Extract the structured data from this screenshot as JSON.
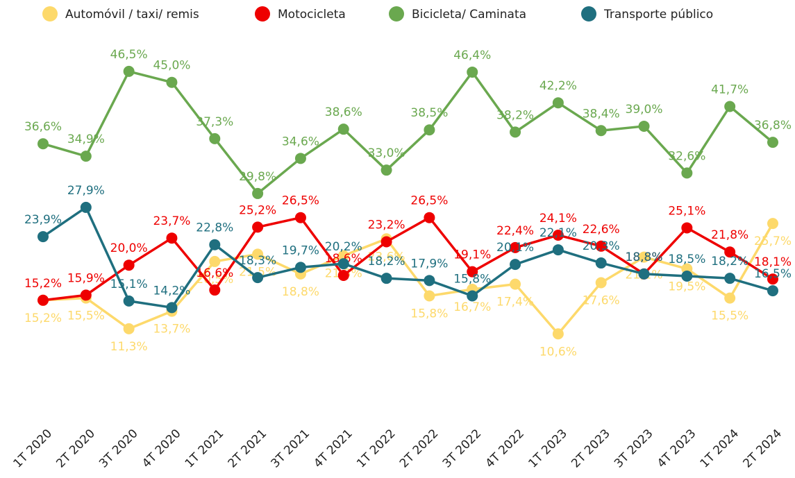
{
  "chart_data": {
    "type": "line",
    "categories": [
      "1T 2020",
      "2T 2020",
      "3T 2020",
      "4T 2020",
      "1T 2021",
      "2T 2021",
      "3T 2021",
      "4T 2021",
      "1T 2022",
      "2T 2022",
      "3T 2022",
      "4T 2022",
      "1T 2023",
      "2T 2023",
      "3T 2023",
      "4T 2023",
      "1T 2024",
      "2T 2024"
    ],
    "ylim": [
      0,
      50
    ],
    "legend": "top",
    "series": [
      {
        "name": "Automóvil / taxi/ remis",
        "color": "#fdd96b",
        "values": [
          15.2,
          15.5,
          11.3,
          13.7,
          20.5,
          21.5,
          18.8,
          21.3,
          23.6,
          15.8,
          16.7,
          17.4,
          10.6,
          17.6,
          21.1,
          19.5,
          15.5,
          25.7
        ],
        "value_labels": [
          "15,2%",
          "15,5%",
          "11,3%",
          "13,7%",
          "20,5%",
          "21,5%",
          "18,8%",
          "21,3%",
          "23,6%",
          "15,8%",
          "16,7%",
          "17,4%",
          "10,6%",
          "17,6%",
          "21,1%",
          "19,5%",
          "15,5%",
          "25,7%"
        ]
      },
      {
        "name": "Motocicleta",
        "color": "#ee0000",
        "values": [
          15.2,
          15.9,
          20.0,
          23.7,
          16.6,
          25.2,
          26.5,
          18.6,
          23.2,
          26.5,
          19.1,
          22.4,
          24.1,
          22.6,
          18.8,
          25.1,
          21.8,
          18.1
        ],
        "value_labels": [
          "15,2%",
          "15,9%",
          "20,0%",
          "23,7%",
          "16,6%",
          "25,2%",
          "26,5%",
          "18,6%",
          "23,2%",
          "26,5%",
          "19,1%",
          "22,4%",
          "24,1%",
          "22,6%",
          "18,8%",
          "25,1%",
          "21,8%",
          "18,1%"
        ]
      },
      {
        "name": "Bicicleta/ Caminata",
        "color": "#6aa84f",
        "values": [
          36.6,
          34.9,
          46.5,
          45.0,
          37.3,
          29.8,
          34.6,
          38.6,
          33.0,
          38.5,
          46.4,
          38.2,
          42.2,
          38.4,
          39.0,
          32.6,
          41.7,
          36.8
        ],
        "value_labels": [
          "36,6%",
          "34,9%",
          "46,5%",
          "45,0%",
          "37,3%",
          "29,8%",
          "34,6%",
          "38,6%",
          "33,0%",
          "38,5%",
          "46,4%",
          "38,2%",
          "42,2%",
          "38,4%",
          "39,0%",
          "32,6%",
          "41,7%",
          "36,8%"
        ]
      },
      {
        "name": "Transporte público",
        "color": "#1f6f7f",
        "values": [
          23.9,
          27.9,
          15.1,
          14.2,
          22.8,
          18.3,
          19.7,
          20.2,
          18.2,
          17.9,
          15.8,
          20.1,
          22.1,
          20.3,
          18.8,
          18.5,
          18.2,
          16.5
        ],
        "value_labels": [
          "23,9%",
          "27,9%",
          "15,1%",
          "14,2%",
          "22,8%",
          "18,3%",
          "19,7%",
          "20,2%",
          "18,2%",
          "17,9%",
          "15,8%",
          "20,1%",
          "22,1%",
          "20,3%",
          "18,8%",
          "18,5%",
          "18,2%",
          "16,5%"
        ]
      }
    ]
  }
}
